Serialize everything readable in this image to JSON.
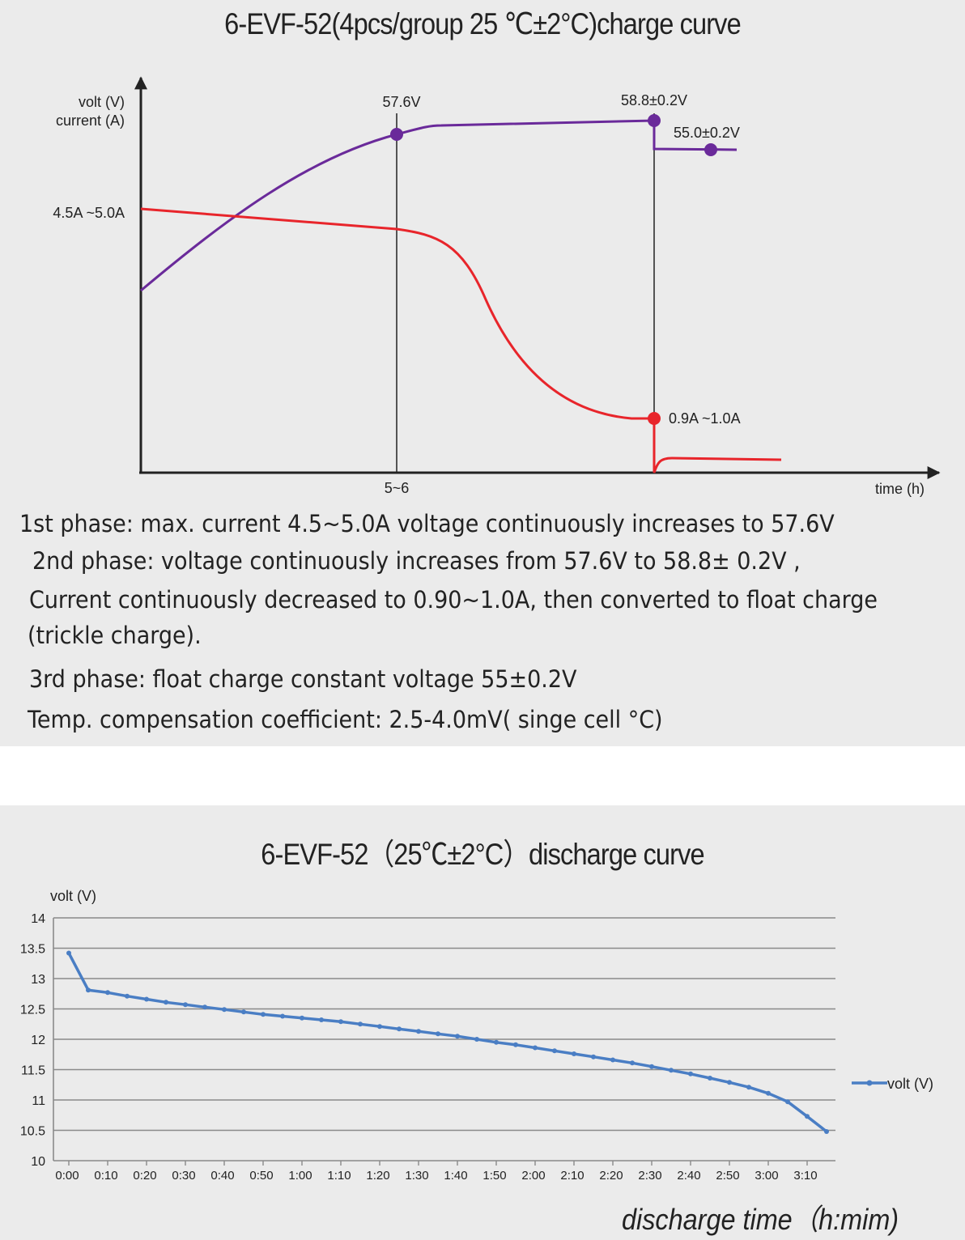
{
  "chart_data": [
    {
      "type": "line",
      "title": "6-EVF-52(4pcs/group  25 ℃±2°C)charge curve",
      "y_label_lines": [
        "volt  (V)",
        "current  (A)"
      ],
      "xlabel": "time  (h)",
      "x_tick_label": "5~6",
      "current_start_label": "4.5A ~5.0A",
      "series": [
        {
          "color": "#6a2a9a"
        },
        {
          "color": "#e8252b"
        }
      ],
      "annotations": [
        {
          "text": "57.6V",
          "color": "#6a2a9a"
        },
        {
          "text": "58.8±0.2V",
          "color": "#6a2a9a"
        },
        {
          "text": "55.0±0.2V",
          "color": "#6a2a9a"
        },
        {
          "text": "0.9A ~1.0A",
          "color": "#e8252b"
        }
      ],
      "notes": [
        "1st phase: max. current 4.5~5.0A  voltage continuously increases to 57.6V",
        "2nd phase: voltage continuously increases from 57.6V to 58.8± 0.2V ,",
        "Current continuously decreased to 0.90~1.0A, then converted to float charge",
        "(trickle charge).",
        "3rd phase: float charge constant voltage 55±0.2V",
        "Temp. compensation  coefficient: 2.5-4.0mV( singe cell °C)"
      ]
    },
    {
      "type": "line",
      "title": "6-EVF-52（25℃±2°C）discharge curve",
      "ylabel": "volt  (V)",
      "xlabel": "discharge time（h:mim)",
      "ylim": [
        10,
        14
      ],
      "y_ticks": [
        "14",
        "13.5",
        "13",
        "12.5",
        "12",
        "11.5",
        "11",
        "10.5",
        "10"
      ],
      "x_ticks": [
        "0:00",
        "0:10",
        "0:20",
        "0:30",
        "0:40",
        "0:50",
        "1:00",
        "1:10",
        "1:20",
        "1:30",
        "1:40",
        "1:50",
        "2:00",
        "2:10",
        "2:20",
        "2:30",
        "2:40",
        "2:50",
        "3:00",
        "3:10"
      ],
      "grid": true,
      "legend": "right",
      "series": [
        {
          "name": "volt  (V)",
          "color": "#4a7ec4",
          "x": [
            "0:00",
            "0:05",
            "0:10",
            "0:15",
            "0:20",
            "0:25",
            "0:30",
            "0:35",
            "0:40",
            "0:45",
            "0:50",
            "0:55",
            "1:00",
            "1:05",
            "1:10",
            "1:15",
            "1:20",
            "1:25",
            "1:30",
            "1:35",
            "1:40",
            "1:45",
            "1:50",
            "1:55",
            "2:00",
            "2:05",
            "2:10",
            "2:15",
            "2:20",
            "2:25",
            "2:30",
            "2:35",
            "2:40",
            "2:45",
            "2:50",
            "2:55",
            "3:00",
            "3:05",
            "3:10",
            "3:15"
          ],
          "values": [
            13.42,
            12.81,
            12.77,
            12.71,
            12.66,
            12.61,
            12.57,
            12.53,
            12.49,
            12.45,
            12.41,
            12.38,
            12.35,
            12.32,
            12.29,
            12.25,
            12.21,
            12.17,
            12.13,
            12.09,
            12.05,
            12.0,
            11.95,
            11.91,
            11.86,
            11.81,
            11.76,
            11.71,
            11.66,
            11.61,
            11.55,
            11.49,
            11.43,
            11.36,
            11.29,
            11.21,
            11.11,
            10.97,
            10.73,
            10.48
          ]
        }
      ]
    }
  ]
}
